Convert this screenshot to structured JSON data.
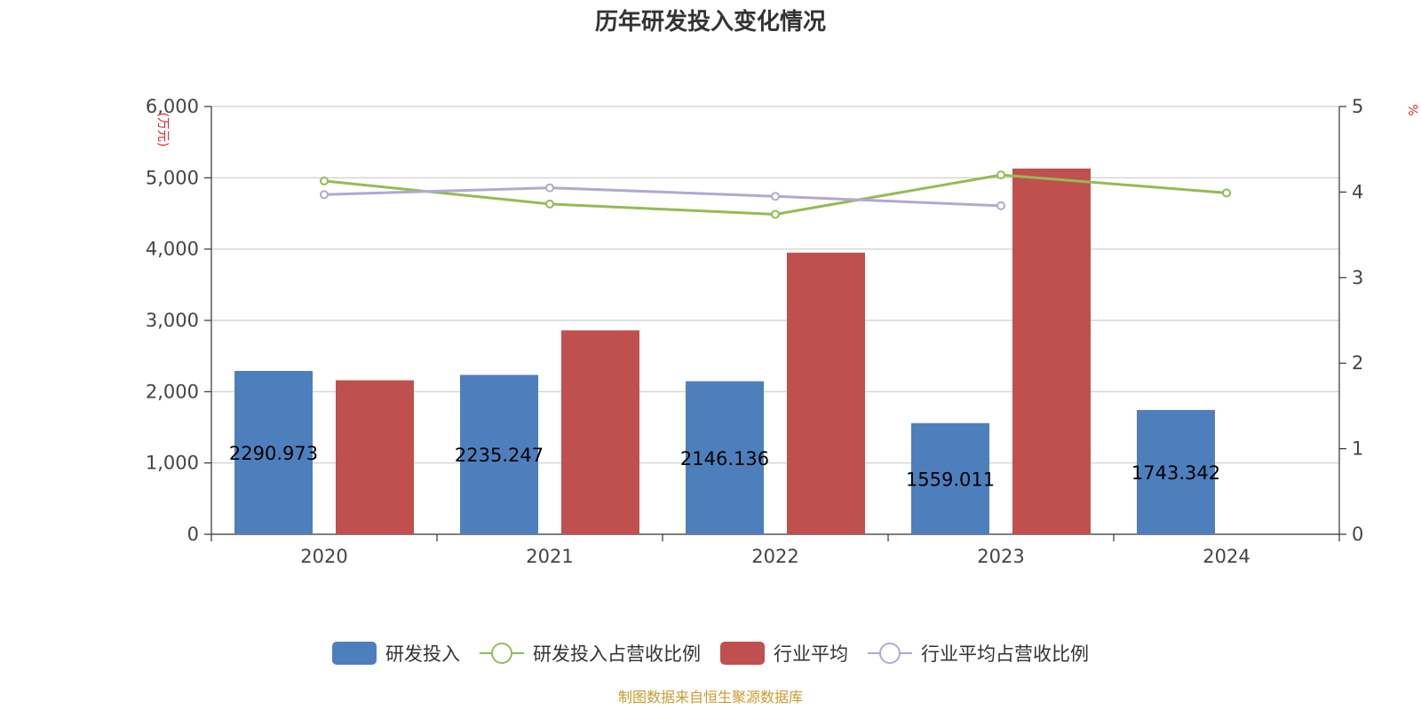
{
  "chart_data": {
    "type": "bar",
    "title": "历年研发投入变化情况",
    "categories": [
      "2020",
      "2021",
      "2022",
      "2023",
      "2024"
    ],
    "y_left": {
      "unit": "(万元)",
      "range": [
        0,
        6000
      ],
      "ticks": [
        "0",
        "1,000",
        "2,000",
        "3,000",
        "4,000",
        "5,000",
        "6,000"
      ]
    },
    "y_right": {
      "unit": "%",
      "range": [
        0,
        5
      ],
      "ticks": [
        "0",
        "1",
        "2",
        "3",
        "4",
        "5"
      ]
    },
    "grid": true,
    "series": [
      {
        "name": "研发投入",
        "kind": "bar",
        "axis": "left",
        "color": "#4e7fbd",
        "values": [
          2290.973,
          2235.247,
          2146.136,
          1559.011,
          1743.342
        ],
        "labels": [
          "2290.973",
          "2235.247",
          "2146.136",
          "1559.011",
          "1743.342"
        ]
      },
      {
        "name": "研发投入占营收比例",
        "kind": "line",
        "axis": "right",
        "color": "#94bb55",
        "values": [
          4.13,
          3.86,
          3.74,
          4.2,
          3.99
        ]
      },
      {
        "name": "行业平均",
        "kind": "bar",
        "axis": "left",
        "color": "#c0504d",
        "values": [
          2160,
          2860,
          3950,
          5130,
          null
        ]
      },
      {
        "name": "行业平均占营收比例",
        "kind": "line",
        "axis": "right",
        "color": "#b4a7d2",
        "values": [
          3.97,
          4.05,
          3.95,
          3.84,
          null
        ]
      }
    ],
    "legend_position": "bottom"
  },
  "source": "制图数据来自恒生聚源数据库"
}
